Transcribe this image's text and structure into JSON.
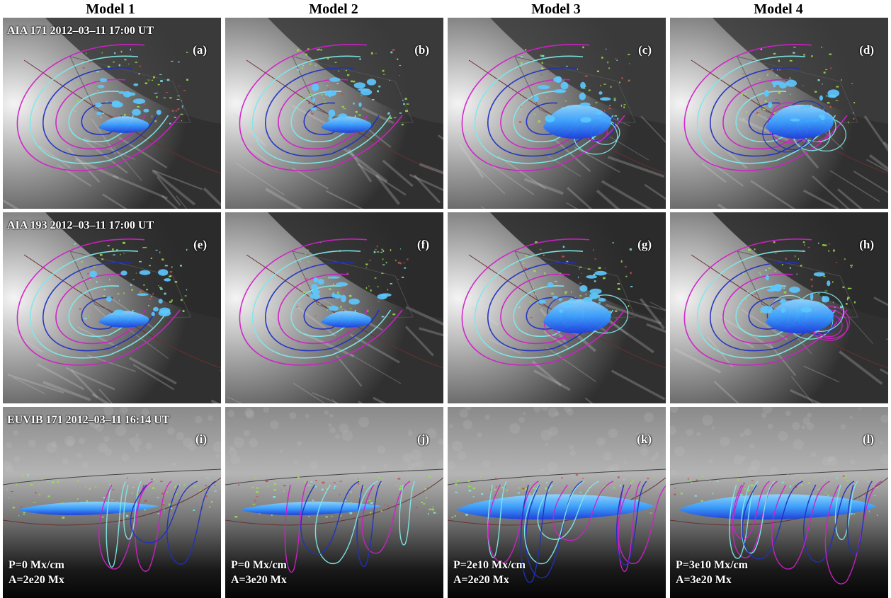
{
  "columns": [
    "Model 1",
    "Model 2",
    "Model 3",
    "Model 4"
  ],
  "rows": [
    {
      "caption": "AIA 171 2012–03–11 17:00 UT",
      "style": "aia171",
      "panels": [
        {
          "letter": "(a)",
          "model": 1
        },
        {
          "letter": "(b)",
          "model": 2
        },
        {
          "letter": "(c)",
          "model": 3
        },
        {
          "letter": "(d)",
          "model": 4
        }
      ]
    },
    {
      "caption": "AIA 193 2012–03–11 17:00 UT",
      "style": "aia193",
      "panels": [
        {
          "letter": "(e)",
          "model": 1
        },
        {
          "letter": "(f)",
          "model": 2
        },
        {
          "letter": "(g)",
          "model": 3
        },
        {
          "letter": "(h)",
          "model": 4
        }
      ]
    },
    {
      "caption": "EUVIB 171 2012–03–11 16:14 UT",
      "style": "euvi",
      "panels": [
        {
          "letter": "(i)",
          "model": 1,
          "p_label": "P=0 Mx/cm",
          "a_label": "A=2e20 Mx"
        },
        {
          "letter": "(j)",
          "model": 2,
          "p_label": "P=0 Mx/cm",
          "a_label": "A=3e20 Mx"
        },
        {
          "letter": "(k)",
          "model": 3,
          "p_label": "P=2e10 Mx/cm",
          "a_label": "A=2e20 Mx"
        },
        {
          "letter": "(l)",
          "model": 4,
          "p_label": "P=3e10 Mx/cm",
          "a_label": "A=3e20 Mx"
        }
      ]
    }
  ],
  "colors": {
    "magenta": "#d020c8",
    "cyan": "#7fe8e8",
    "blue": "#2030c0",
    "flux_rope": "#3aa0ff",
    "flux_rope_dark": "#1a3fe0",
    "green_dots": "#9be04a",
    "red_dots": "#c05050"
  }
}
